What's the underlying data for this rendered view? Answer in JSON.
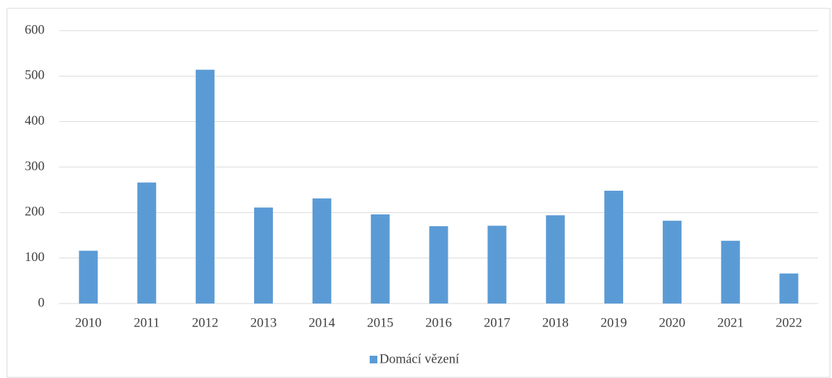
{
  "chart_data": {
    "type": "bar",
    "categories": [
      "2010",
      "2011",
      "2012",
      "2013",
      "2014",
      "2015",
      "2016",
      "2017",
      "2018",
      "2019",
      "2020",
      "2021",
      "2022"
    ],
    "series": [
      {
        "name": "Domácí vězení",
        "color": "#5b9bd5",
        "values": [
          116,
          266,
          514,
          211,
          231,
          196,
          170,
          171,
          194,
          248,
          182,
          138,
          66
        ]
      }
    ],
    "ylim": [
      0,
      600
    ],
    "yticks": [
      0,
      100,
      200,
      300,
      400,
      500,
      600
    ],
    "grid": true,
    "legend": "bottom"
  }
}
